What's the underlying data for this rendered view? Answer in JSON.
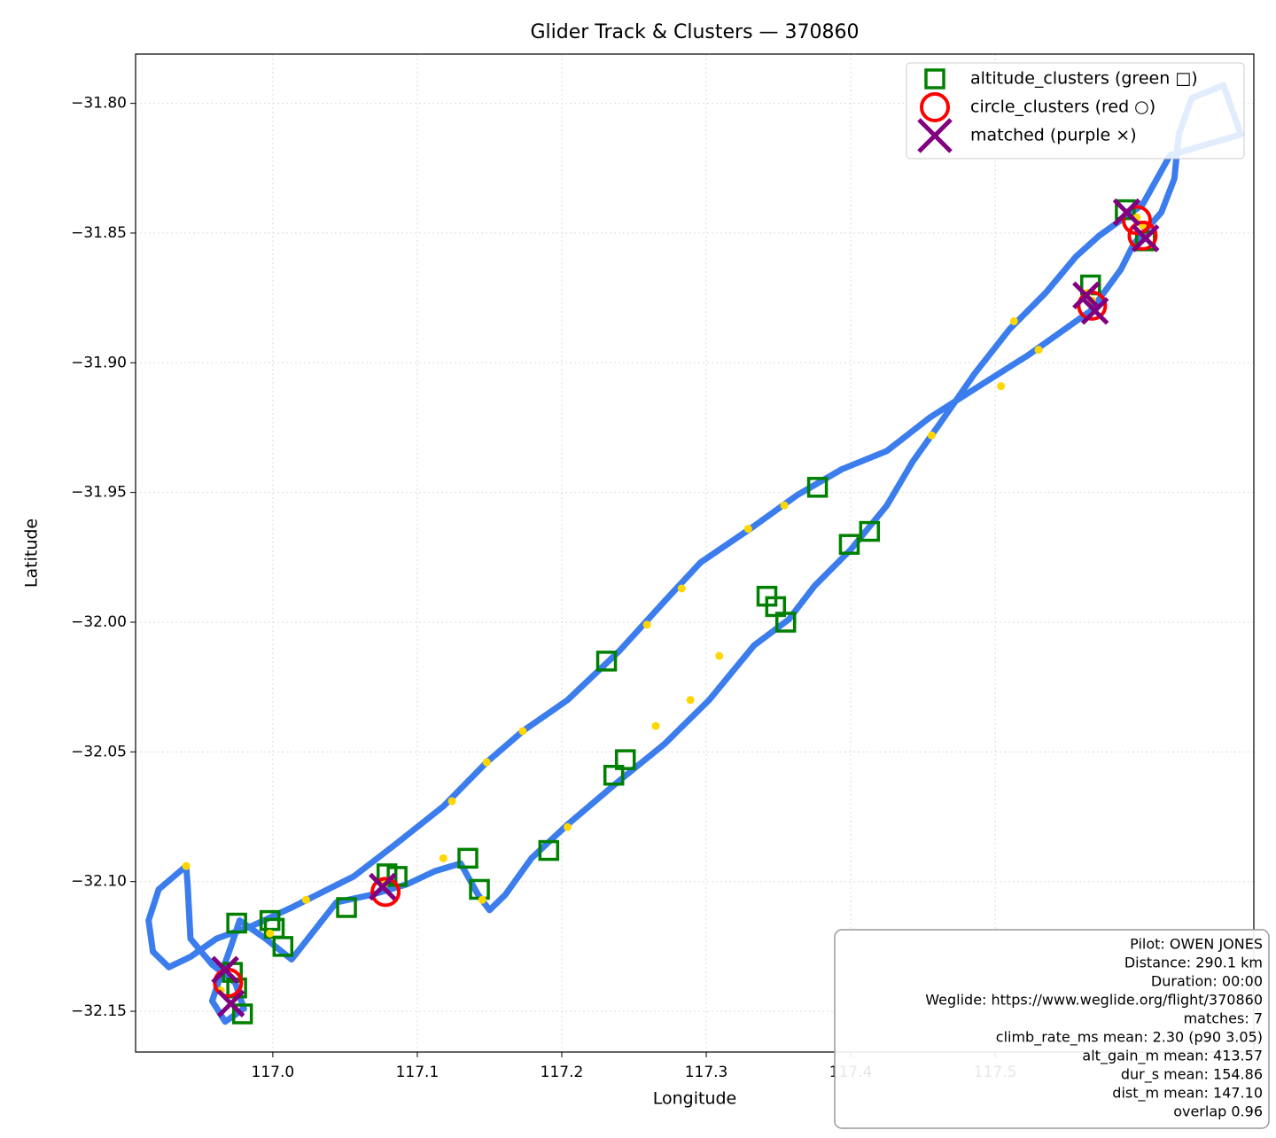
{
  "chart_data": {
    "type": "scatter",
    "title": "Glider Track & Clusters — 370860",
    "x_label": "Longitude",
    "y_label": "Latitude",
    "xlim": [
      116.905,
      117.679
    ],
    "ylim": [
      -32.1657,
      -31.781
    ],
    "xticks": [
      {
        "value": 117,
        "label": "117.0"
      },
      117.1,
      117.2,
      117.3,
      117.4,
      117.5
    ],
    "yticks": [
      {
        "value": -31.8,
        "label": "−31.80"
      },
      {
        "value": -31.85,
        "label": "−31.85"
      },
      {
        "value": -31.9,
        "label": "−31.90"
      },
      {
        "value": -31.95,
        "label": "−31.95"
      },
      {
        "value": -32.0,
        "label": "−32.00"
      },
      {
        "value": -32.05,
        "label": "−32.05"
      },
      {
        "value": -32.1,
        "label": "−32.10"
      },
      {
        "value": -32.15,
        "label": "−32.15"
      }
    ],
    "grid": true,
    "legend": "upper right",
    "series": [
      {
        "marker": "line",
        "color": "#3b7ded",
        "x": [
          116.94,
          116.921,
          116.914,
          116.917,
          116.928,
          116.943,
          116.961,
          116.986,
          117.013,
          117.056,
          117.084,
          117.118,
          117.148,
          117.173,
          117.204,
          117.24,
          117.271,
          117.296,
          117.333,
          117.363,
          117.394,
          117.425,
          117.455,
          117.486,
          117.523,
          117.566,
          117.587,
          117.596,
          117.615,
          117.624,
          117.627,
          117.636,
          117.658,
          117.67,
          117.621,
          117.609,
          117.602,
          117.572,
          117.556,
          117.535,
          117.51,
          117.486,
          117.461,
          117.443,
          117.425,
          117.4,
          117.375,
          117.357,
          117.333,
          117.302,
          117.271,
          117.24,
          117.204,
          117.179,
          117.161,
          117.15,
          117.142,
          117.13,
          117.112,
          117.093,
          117.069,
          117.044,
          117.013,
          116.995,
          116.977,
          116.971,
          116.964,
          116.958,
          116.967,
          116.98,
          116.974,
          116.958,
          116.943,
          116.941,
          116.94
        ],
        "values": [
          -32.094,
          -32.103,
          -32.115,
          -32.127,
          -32.133,
          -32.129,
          -32.122,
          -32.117,
          -32.11,
          -32.098,
          -32.086,
          -32.071,
          -32.054,
          -32.042,
          -32.03,
          -32.011,
          -31.992,
          -31.977,
          -31.963,
          -31.951,
          -31.941,
          -31.934,
          -31.921,
          -31.91,
          -31.897,
          -31.88,
          -31.864,
          -31.854,
          -31.842,
          -31.829,
          -31.812,
          -31.798,
          -31.793,
          -31.812,
          -31.82,
          -31.832,
          -31.839,
          -31.851,
          -31.859,
          -31.873,
          -31.887,
          -31.904,
          -31.924,
          -31.938,
          -31.955,
          -31.972,
          -31.986,
          -31.999,
          -32.009,
          -32.03,
          -32.047,
          -32.061,
          -32.078,
          -32.091,
          -32.105,
          -32.111,
          -32.105,
          -32.093,
          -32.096,
          -32.101,
          -32.105,
          -32.108,
          -32.13,
          -32.122,
          -32.115,
          -32.125,
          -32.136,
          -32.146,
          -32.154,
          -32.149,
          -32.139,
          -32.132,
          -32.122,
          -32.101,
          -32.094
        ]
      },
      {
        "marker": "dot",
        "color": "#ffd700",
        "x": [
          117.598,
          117.602,
          117.567,
          117.564,
          117.456,
          117.504,
          117.513,
          117.53,
          117.354,
          117.329,
          117.283,
          117.259,
          117.173,
          117.148,
          117.124,
          117.309,
          117.289,
          117.265,
          117.204,
          117.118,
          117.145,
          117.077,
          116.998,
          116.964,
          116.94,
          117.023
        ],
        "values": [
          -31.844,
          -31.847,
          -31.876,
          -31.873,
          -31.928,
          -31.909,
          -31.884,
          -31.895,
          -31.955,
          -31.964,
          -31.987,
          -32.001,
          -32.042,
          -32.054,
          -32.069,
          -32.013,
          -32.03,
          -32.04,
          -32.079,
          -32.091,
          -32.107,
          -32.101,
          -32.12,
          -32.142,
          -32.094,
          -32.107
        ]
      },
      {
        "name": "altitude_clusters (green □)",
        "marker": "square",
        "color": "#008000",
        "x": [
          117.377,
          117.413,
          117.399,
          117.342,
          117.348,
          117.355,
          117.231,
          117.244,
          117.236,
          117.191,
          117.135,
          117.143,
          117.079,
          117.086,
          117.051,
          116.998,
          117.001,
          117.007,
          116.975,
          116.972,
          116.975,
          116.979,
          117.59,
          117.604,
          117.566
        ],
        "values": [
          -31.948,
          -31.965,
          -31.97,
          -31.99,
          -31.994,
          -32.0,
          -32.015,
          -32.053,
          -32.059,
          -32.088,
          -32.091,
          -32.103,
          -32.097,
          -32.098,
          -32.11,
          -32.115,
          -32.118,
          -32.125,
          -32.116,
          -32.135,
          -32.141,
          -32.151,
          -31.841,
          -31.853,
          -31.87
        ]
      },
      {
        "name": "circle_clusters (red ○)",
        "marker": "circle",
        "color": "#ff0000",
        "x": [
          117.598,
          117.602,
          117.567,
          117.078,
          116.969
        ],
        "values": [
          -31.845,
          -31.851,
          -31.878,
          -32.104,
          -32.139
        ]
      },
      {
        "name": "matched (purple ×)",
        "marker": "x",
        "color": "#800080",
        "x": [
          117.591,
          117.604,
          117.563,
          117.569,
          117.076,
          116.967,
          116.971
        ],
        "values": [
          -31.842,
          -31.852,
          -31.874,
          -31.88,
          -32.102,
          -32.134,
          -32.147
        ]
      }
    ],
    "annotation": [
      "Pilot: OWEN JONES",
      "Distance: 290.1 km",
      "Duration: 00:00",
      "Weglide: https://www.weglide.org/flight/370860",
      "matches: 7",
      "climb_rate_ms mean: 2.30 (p90 3.05)",
      "alt_gain_m mean: 413.57",
      "dur_s mean: 154.86",
      "dist_m mean: 147.10",
      "overlap 0.96"
    ]
  }
}
